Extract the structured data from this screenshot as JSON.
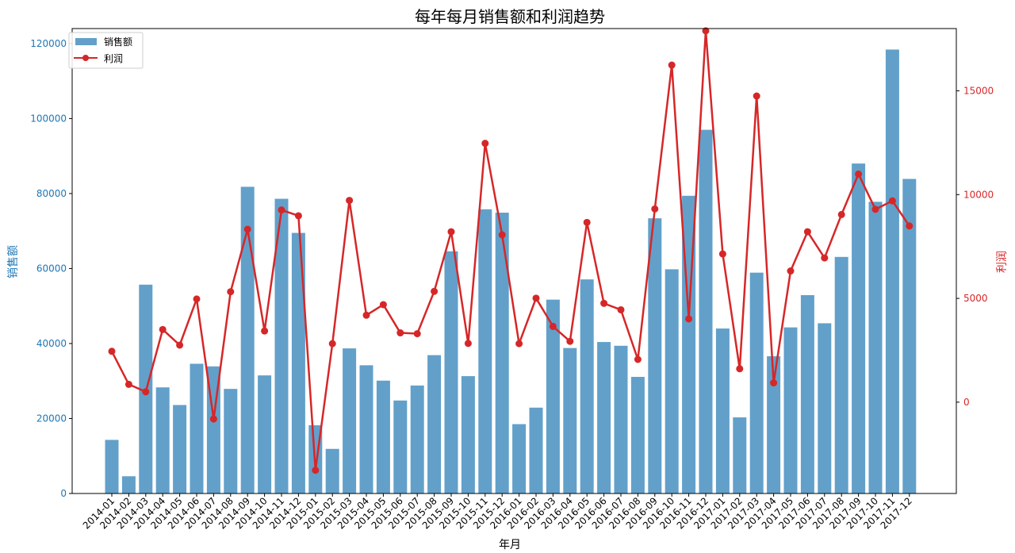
{
  "chart_data": {
    "type": "bar",
    "title": "每年每月销售额和利润趋势",
    "xlabel": "年月",
    "ylabel_left": "销售额",
    "ylabel_right": "利润",
    "ylim_left": [
      0,
      124000
    ],
    "ylim_right": [
      -4400,
      18000
    ],
    "yticks_left": [
      "0",
      "20000",
      "40000",
      "60000",
      "80000",
      "100000",
      "120000"
    ],
    "yticks_right": [
      "0",
      "5000",
      "10000",
      "15000"
    ],
    "legend_position": "top-left",
    "grid": false,
    "colors": {
      "sales": "#1f77b4",
      "profit": "#d62728"
    },
    "categories": [
      "2014-01",
      "2014-02",
      "2014-03",
      "2014-04",
      "2014-05",
      "2014-06",
      "2014-07",
      "2014-08",
      "2014-09",
      "2014-10",
      "2014-11",
      "2014-12",
      "2015-01",
      "2015-02",
      "2015-03",
      "2015-04",
      "2015-05",
      "2015-06",
      "2015-07",
      "2015-08",
      "2015-09",
      "2015-10",
      "2015-11",
      "2015-12",
      "2016-01",
      "2016-02",
      "2016-03",
      "2016-04",
      "2016-05",
      "2016-06",
      "2016-07",
      "2016-08",
      "2016-09",
      "2016-10",
      "2016-11",
      "2016-12",
      "2017-01",
      "2017-02",
      "2017-03",
      "2017-04",
      "2017-05",
      "2017-06",
      "2017-07",
      "2017-08",
      "2017-09",
      "2017-10",
      "2017-11",
      "2017-12"
    ],
    "series": [
      {
        "name": "销售额",
        "type": "bar",
        "axis": "left",
        "values": [
          14300,
          4600,
          55700,
          28300,
          23600,
          34600,
          33900,
          27900,
          81800,
          31500,
          78600,
          69500,
          18200,
          11900,
          38700,
          34200,
          30100,
          24800,
          28800,
          36900,
          64600,
          31300,
          75800,
          74900,
          18500,
          22900,
          51700,
          38800,
          57100,
          40400,
          39400,
          31100,
          73400,
          59800,
          79400,
          97000,
          44000,
          20300,
          58900,
          36600,
          44300,
          52900,
          45400,
          63100,
          88000,
          77800,
          118400,
          83900
        ]
      },
      {
        "name": "利润",
        "type": "line",
        "axis": "right",
        "values": [
          2450,
          860,
          500,
          3500,
          2750,
          4970,
          -810,
          5320,
          8330,
          3430,
          9260,
          8980,
          -3280,
          2820,
          9720,
          4190,
          4700,
          3340,
          3300,
          5340,
          8210,
          2830,
          12470,
          8060,
          2820,
          5010,
          3650,
          2930,
          8660,
          4760,
          4450,
          2060,
          9310,
          16240,
          4010,
          17890,
          7140,
          1610,
          14750,
          930,
          6320,
          8210,
          6950,
          9040,
          10990,
          9290,
          9700,
          8490
        ]
      }
    ]
  }
}
